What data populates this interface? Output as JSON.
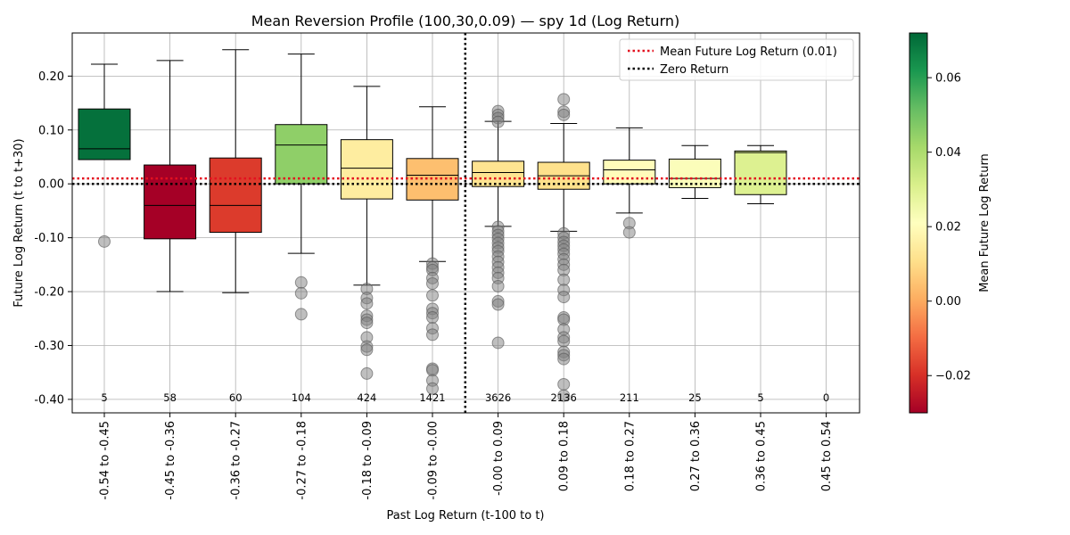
{
  "chart_data": {
    "type": "box",
    "title": "Mean Reversion Profile (100,30,0.09) — spy 1d (Log Return)",
    "xlabel": "Past Log Return (t-100 to t)",
    "ylabel": "Future Log Return (t to t+30)",
    "ylim": [
      -0.425,
      0.28
    ],
    "yticks": [
      -0.4,
      -0.3,
      -0.2,
      -0.1,
      0.0,
      0.1,
      0.2
    ],
    "ytick_labels": [
      "-0.40",
      "-0.30",
      "-0.20",
      "-0.10",
      "0.00",
      "0.10",
      "0.20"
    ],
    "grid": true,
    "categories": [
      "-0.54 to -0.45",
      "-0.45 to -0.36",
      "-0.36 to -0.27",
      "-0.27 to -0.18",
      "-0.18 to -0.09",
      "-0.09 to -0.00",
      "-0.00 to 0.09",
      "0.09 to 0.18",
      "0.18 to 0.27",
      "0.27 to 0.36",
      "0.36 to 0.45",
      "0.45 to 0.54"
    ],
    "counts": [
      "5",
      "58",
      "60",
      "104",
      "424",
      "1421",
      "3626",
      "2136",
      "211",
      "25",
      "5",
      "0"
    ],
    "boxes": [
      {
        "q1": 0.045,
        "median": 0.065,
        "q3": 0.139,
        "whislo": 0.045,
        "whishi": 0.222,
        "mean": 0.07,
        "fliers": [
          -0.107
        ]
      },
      {
        "q1": -0.102,
        "median": -0.04,
        "q3": 0.035,
        "whislo": -0.2,
        "whishi": 0.229,
        "mean": -0.03,
        "fliers": []
      },
      {
        "q1": -0.09,
        "median": -0.04,
        "q3": 0.048,
        "whislo": -0.202,
        "whishi": 0.249,
        "mean": -0.018,
        "fliers": []
      },
      {
        "q1": 0.0,
        "median": 0.072,
        "q3": 0.11,
        "whislo": -0.129,
        "whishi": 0.241,
        "mean": 0.045,
        "fliers": [
          -0.183,
          -0.203,
          -0.242
        ]
      },
      {
        "q1": -0.028,
        "median": 0.029,
        "q3": 0.082,
        "whislo": -0.188,
        "whishi": 0.181,
        "mean": 0.015,
        "fliers": [
          -0.195,
          -0.212,
          -0.222,
          -0.245,
          -0.252,
          -0.258,
          -0.285,
          -0.302,
          -0.308,
          -0.352
        ]
      },
      {
        "q1": -0.03,
        "median": 0.016,
        "q3": 0.047,
        "whislo": -0.144,
        "whishi": 0.143,
        "mean": 0.004,
        "fliers": [
          -0.148,
          -0.155,
          -0.16,
          -0.175,
          -0.185,
          -0.207,
          -0.232,
          -0.24,
          -0.248,
          -0.268,
          -0.28,
          -0.343,
          -0.346,
          -0.365,
          -0.38
        ]
      },
      {
        "q1": -0.005,
        "median": 0.021,
        "q3": 0.042,
        "whislo": -0.079,
        "whishi": 0.116,
        "mean": 0.012,
        "fliers": [
          0.135,
          0.128,
          0.122,
          0.115,
          -0.08,
          -0.088,
          -0.095,
          -0.102,
          -0.11,
          -0.118,
          -0.125,
          -0.135,
          -0.145,
          -0.155,
          -0.165,
          -0.175,
          -0.19,
          -0.218,
          -0.224,
          -0.295
        ]
      },
      {
        "q1": -0.01,
        "median": 0.015,
        "q3": 0.04,
        "whislo": -0.088,
        "whishi": 0.112,
        "mean": 0.011,
        "fliers": [
          0.157,
          0.134,
          0.128,
          -0.092,
          -0.1,
          -0.108,
          -0.115,
          -0.122,
          -0.13,
          -0.14,
          -0.15,
          -0.16,
          -0.178,
          -0.197,
          -0.21,
          -0.248,
          -0.252,
          -0.27,
          -0.285,
          -0.292,
          -0.312,
          -0.318,
          -0.325,
          -0.372,
          -0.393
        ]
      },
      {
        "q1": 0.0,
        "median": 0.026,
        "q3": 0.044,
        "whislo": -0.054,
        "whishi": 0.104,
        "mean": 0.02,
        "fliers": [
          -0.073,
          -0.09
        ]
      },
      {
        "q1": -0.007,
        "median": 0.01,
        "q3": 0.046,
        "whislo": -0.027,
        "whishi": 0.071,
        "mean": 0.022,
        "fliers": []
      },
      {
        "q1": -0.02,
        "median": 0.058,
        "q3": 0.061,
        "whislo": -0.037,
        "whishi": 0.071,
        "mean": 0.03,
        "fliers": []
      },
      null
    ],
    "ref_lines": [
      {
        "type": "hline",
        "y": 0.01,
        "style": "dotted",
        "color": "#e3101f",
        "label": "Mean Future Log Return (0.01)"
      },
      {
        "type": "hline",
        "y": 0.0,
        "style": "dotted",
        "color": "#000000",
        "label": "Zero Return"
      },
      {
        "type": "vline",
        "x": 5.5,
        "style": "dotted",
        "color": "#000000"
      }
    ],
    "legend": {
      "placement": "top-right",
      "entries": [
        "Mean Future Log Return (0.01)",
        "Zero Return"
      ]
    },
    "colorbar": {
      "label": "Mean Future Log Return",
      "colormap": "RdYlGn",
      "range": [
        -0.03,
        0.072
      ],
      "ticks": [
        -0.02,
        0.0,
        0.02,
        0.04,
        0.06
      ],
      "tick_labels": [
        "−0.02",
        "0.00",
        "0.02",
        "0.04",
        "0.06"
      ]
    }
  }
}
